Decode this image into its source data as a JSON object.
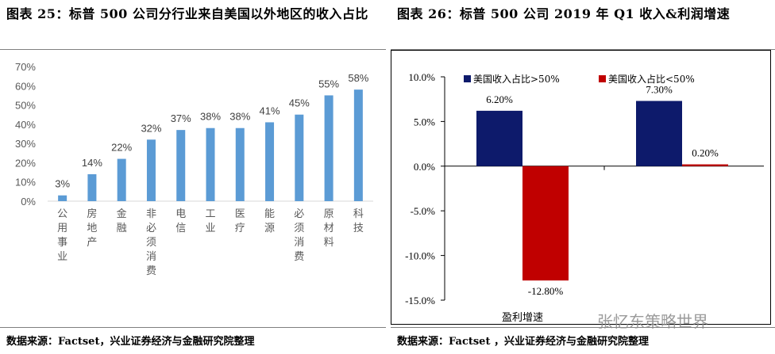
{
  "left": {
    "title": "图表 25：标普 500 公司分行业来自美国以外地区的收入占比",
    "source": "数据来源：Factset，兴业证券经济与金融研究院整理"
  },
  "right": {
    "title": "图表 26：标普 500 公司 2019 年 Q1 收入&利润增速",
    "source": "数据来源：Factset ，兴业证券经济与金融研究院整理"
  },
  "watermark": "张忆东策略世界",
  "colors": {
    "bar_left": "#5b9bd5",
    "navy": "#0d1a6b",
    "red": "#c00000"
  },
  "chart_data": [
    {
      "type": "bar",
      "categories": [
        "公用事业",
        "房地产",
        "金融",
        "非必须消费",
        "电信",
        "工业",
        "医疗",
        "能源",
        "必须消费",
        "原材料",
        "科技"
      ],
      "values": [
        3,
        14,
        22,
        32,
        37,
        38,
        38,
        41,
        45,
        55,
        58
      ],
      "data_labels": [
        "3%",
        "14%",
        "22%",
        "32%",
        "37%",
        "38%",
        "38%",
        "41%",
        "45%",
        "55%",
        "58%"
      ],
      "ylim": [
        0,
        70
      ],
      "yticks": [
        "0%",
        "10%",
        "20%",
        "30%",
        "40%",
        "50%",
        "60%",
        "70%"
      ],
      "title": "",
      "xlabel": "",
      "ylabel": ""
    },
    {
      "type": "bar",
      "categories": [
        "盈利增速",
        ""
      ],
      "series": [
        {
          "name": "美国收入占比>50%",
          "values": [
            6.2,
            7.3
          ],
          "data_labels": [
            "6.20%",
            "7.30%"
          ]
        },
        {
          "name": "美国收入占比<50%",
          "values": [
            -12.8,
            0.2
          ],
          "data_labels": [
            "-12.80%",
            "0.20%"
          ]
        }
      ],
      "ylim": [
        -15,
        10
      ],
      "yticks": [
        "10.0%",
        "5.0%",
        "0.0%",
        "-5.0%",
        "-10.0%",
        "-15.0%"
      ],
      "legend": "top",
      "title": "",
      "xlabel": "",
      "ylabel": ""
    }
  ]
}
